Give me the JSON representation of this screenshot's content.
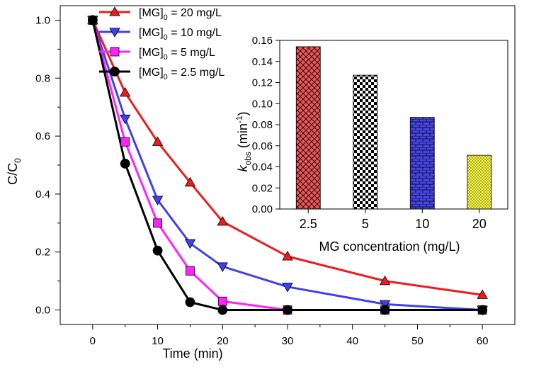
{
  "chart_data": [
    {
      "type": "line",
      "xlabel": "Time (min)",
      "ylabel_main": "C/C",
      "ylabel_sub": "0",
      "xlim": [
        -5,
        65
      ],
      "ylim": [
        -0.05,
        1.05
      ],
      "x_ticks": [
        0,
        10,
        20,
        30,
        40,
        50,
        60
      ],
      "y_ticks": [
        "0.0",
        "0.2",
        "0.4",
        "0.6",
        "0.8",
        "1.0"
      ],
      "legend_position": "top-left",
      "x": [
        0,
        5,
        10,
        15,
        20,
        30,
        45,
        60
      ],
      "series": [
        {
          "name": "[MG]0 = 20 mg/L",
          "legend_main": "[MG]",
          "legend_sub": "0",
          "legend_rest": " = 20 mg/L",
          "marker": "triangle-up",
          "color": "#ee1c1c",
          "values": [
            1.0,
            0.75,
            0.58,
            0.44,
            0.305,
            0.185,
            0.1,
            0.052
          ]
        },
        {
          "name": "[MG]0 = 10 mg/L",
          "legend_main": "[MG]",
          "legend_sub": "0",
          "legend_rest": " = 10 mg/L",
          "marker": "triangle-down",
          "color": "#4040f0",
          "values": [
            1.0,
            0.66,
            0.38,
            0.23,
            0.15,
            0.08,
            0.02,
            0.0
          ]
        },
        {
          "name": "[MG]0 = 5 mg/L",
          "legend_main": "[MG]",
          "legend_sub": "0",
          "legend_rest": " = 5 mg/L",
          "marker": "square",
          "color": "#ff21ff",
          "values": [
            1.0,
            0.58,
            0.3,
            0.135,
            0.03,
            0.0,
            0.0,
            0.0
          ]
        },
        {
          "name": "[MG]0 = 2.5 mg/L",
          "legend_main": "[MG]",
          "legend_sub": "0",
          "legend_rest": " = 2.5 mg/L",
          "marker": "circle",
          "color": "#000000",
          "values": [
            1.0,
            0.505,
            0.205,
            0.027,
            0.0,
            0.0,
            0.0,
            0.0
          ]
        }
      ]
    },
    {
      "type": "bar",
      "position": "inset",
      "xlabel": "MG concentration (mg/L)",
      "ylabel_k": "k",
      "ylabel_sub": "obs",
      "ylabel_unit": " (min",
      "ylabel_sup": "-1",
      "ylabel_close": ")",
      "ylim": [
        0,
        0.16
      ],
      "y_ticks": [
        "0.00",
        "0.02",
        "0.04",
        "0.06",
        "0.08",
        "0.10",
        "0.12",
        "0.14",
        "0.16"
      ],
      "categories": [
        "2.5",
        "5",
        "10",
        "20"
      ],
      "values": [
        0.154,
        0.127,
        0.087,
        0.051
      ],
      "colors": [
        "#ee5555",
        "#c8c8c8",
        "#4646e8",
        "#f5f542"
      ],
      "patterns": [
        "crosshatch",
        "checker",
        "brick",
        "dots"
      ]
    }
  ]
}
